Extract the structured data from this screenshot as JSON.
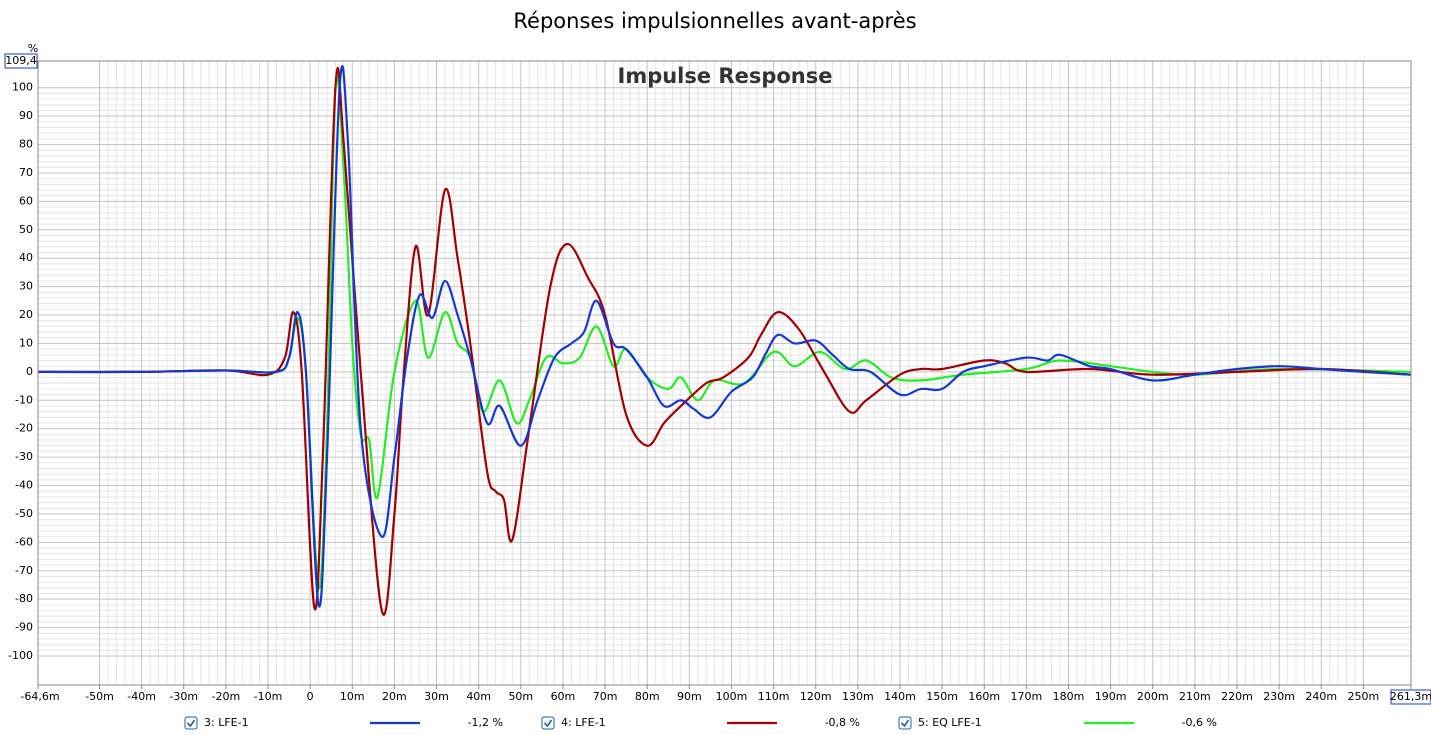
{
  "chart_data": {
    "type": "line",
    "title": "Réponses impulsionnelles avant-après",
    "subtitle": "Impulse Response",
    "y_unit": "%",
    "xlim": [
      -64.6,
      261.3
    ],
    "ylim": [
      -110.2,
      109.4
    ],
    "xticks": [
      {
        "value": -64.6,
        "label": "-64,6m"
      },
      {
        "value": -50,
        "label": "-50m"
      },
      {
        "value": -40,
        "label": "-40m"
      },
      {
        "value": -30,
        "label": "-30m"
      },
      {
        "value": -20,
        "label": "-20m"
      },
      {
        "value": -10,
        "label": "-10m"
      },
      0,
      {
        "value": 10,
        "label": "10m"
      },
      {
        "value": 20,
        "label": "20m"
      },
      {
        "value": 30,
        "label": "30m"
      },
      {
        "value": 40,
        "label": "40m"
      },
      {
        "value": 50,
        "label": "50m"
      },
      {
        "value": 60,
        "label": "60m"
      },
      {
        "value": 70,
        "label": "70m"
      },
      {
        "value": 80,
        "label": "80m"
      },
      {
        "value": 90,
        "label": "90m"
      },
      {
        "value": 100,
        "label": "100m"
      },
      {
        "value": 110,
        "label": "110m"
      },
      {
        "value": 120,
        "label": "120m"
      },
      {
        "value": 130,
        "label": "130m"
      },
      {
        "value": 140,
        "label": "140m"
      },
      {
        "value": 150,
        "label": "150m"
      },
      {
        "value": 160,
        "label": "160m"
      },
      {
        "value": 170,
        "label": "170m"
      },
      {
        "value": 180,
        "label": "180m"
      },
      {
        "value": 190,
        "label": "190m"
      },
      {
        "value": 200,
        "label": "200m"
      },
      {
        "value": 210,
        "label": "210m"
      },
      {
        "value": 220,
        "label": "220m"
      },
      {
        "value": 230,
        "label": "230m"
      },
      {
        "value": 240,
        "label": "240m"
      },
      {
        "value": 250,
        "label": "250m"
      },
      {
        "value": 261.3,
        "label": "261,3m"
      }
    ],
    "yticks": [
      {
        "value": 109.4,
        "label": "109,4"
      },
      100,
      90,
      80,
      70,
      60,
      50,
      40,
      30,
      20,
      10,
      0,
      -10,
      -20,
      -30,
      -40,
      -50,
      -60,
      -70,
      -80,
      -90,
      -100
    ],
    "grid": true,
    "series": [
      {
        "name": "3: LFE-1",
        "legend_value": "-1,2 %",
        "color": "#1438d8",
        "x": [
          -64.6,
          -40,
          -20,
          -8,
          -5,
          -3,
          -1,
          2,
          4,
          7,
          9,
          12,
          17,
          20,
          23,
          26,
          29,
          32,
          35,
          38,
          42,
          45,
          50,
          54,
          58,
          62,
          65,
          68,
          72,
          75,
          80,
          84,
          88,
          91,
          95,
          100,
          105,
          108,
          111,
          115,
          120,
          124,
          128,
          133,
          140,
          145,
          150,
          155,
          160,
          170,
          175,
          178,
          185,
          190,
          200,
          210,
          220,
          230,
          240,
          250,
          261.3
        ],
        "values": [
          0,
          0,
          0.5,
          0,
          5,
          21,
          0,
          -82,
          -30,
          100,
          80,
          -20,
          -58,
          -30,
          5,
          27,
          19,
          32,
          20,
          5,
          -18,
          -12,
          -26,
          -10,
          5,
          10,
          14,
          25,
          10,
          8,
          -2,
          -12,
          -10,
          -13,
          -16,
          -7,
          -2,
          6,
          13,
          10,
          11,
          6,
          1,
          0,
          -8,
          -6,
          -6,
          0,
          2,
          5,
          4,
          6,
          2,
          1,
          -3,
          -1,
          1,
          2,
          1,
          0,
          -1
        ]
      },
      {
        "name": "4: LFE-1",
        "legend_value": "-0,8 %",
        "color": "#a40000",
        "x": [
          -64.6,
          -40,
          -20,
          -10,
          -6,
          -4,
          -2,
          1,
          3,
          6,
          8,
          12,
          17,
          20,
          22,
          25,
          28,
          32,
          35,
          38,
          42,
          44,
          46,
          48,
          52,
          57,
          61,
          66,
          70,
          75,
          80,
          84,
          88,
          94,
          98,
          104,
          107,
          111,
          116,
          122,
          128,
          132,
          140,
          145,
          150,
          160,
          165,
          170,
          185,
          200,
          220,
          240,
          261.3
        ],
        "values": [
          0,
          0,
          0.5,
          -1,
          5,
          21,
          0,
          -83,
          -30,
          100,
          80,
          0,
          -84,
          -50,
          -5,
          44,
          20,
          64,
          40,
          10,
          -35,
          -42,
          -45,
          -59,
          -20,
          30,
          45,
          33,
          20,
          -15,
          -26,
          -18,
          -12,
          -4,
          -2,
          5,
          13,
          21,
          15,
          0,
          -14,
          -10,
          -1,
          1,
          1,
          4,
          3,
          0,
          1,
          -1,
          0,
          1,
          -1
        ]
      },
      {
        "name": "5: EQ LFE-1",
        "legend_value": "-0,6 %",
        "color": "#22ee22",
        "x": [
          -64.6,
          -40,
          -20,
          -8,
          -5,
          -3,
          -1,
          2,
          4,
          6,
          8,
          10,
          12,
          14,
          16,
          20,
          25,
          28,
          32,
          35,
          38,
          41,
          45,
          49,
          52,
          56,
          60,
          64,
          68,
          72,
          75,
          80,
          85,
          88,
          92,
          96,
          103,
          110,
          115,
          121,
          127,
          132,
          138,
          145,
          155,
          170,
          178,
          190,
          200,
          210,
          230,
          261.3
        ],
        "values": [
          0,
          0,
          0.5,
          0,
          5,
          19,
          0,
          -76,
          -20,
          100,
          70,
          10,
          -22,
          -24,
          -44,
          0,
          25,
          5,
          21,
          10,
          5,
          -14,
          -3,
          -18,
          -10,
          5,
          3,
          5,
          16,
          2,
          8,
          -2,
          -6,
          -2,
          -10,
          -3,
          -4,
          7,
          2,
          7,
          1,
          4,
          -2,
          -3,
          -1,
          1,
          4,
          2,
          0,
          -1,
          1,
          0
        ]
      }
    ]
  }
}
